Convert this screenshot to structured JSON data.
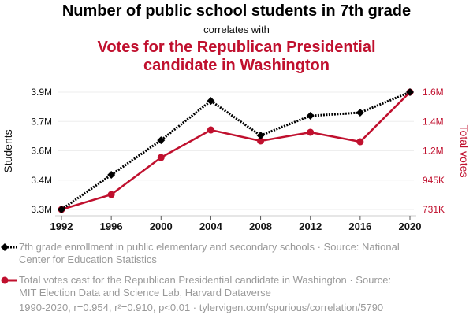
{
  "header": {
    "title": "Number of public school students in 7th grade",
    "subtitle": "correlates with",
    "title2": "Votes for the Republican Presidential candidate in Washington"
  },
  "legend": {
    "series1": "7th grade enrollment in public elementary and secondary schools · Source: National Center for Education Statistics",
    "series2": "Total votes cast for the Republican Presidential candidate in Washington · Source: MIT Election Data and Science Lab, Harvard Dataverse"
  },
  "footer": "1990-2020, r=0.954, r²=0.910, p<0.01 · tylervigen.com/spurious/correlation/5790",
  "colors": {
    "series1": "#000000",
    "series2": "#c0102e",
    "grid": "#eeeeee",
    "legend_text": "#999999"
  },
  "chart_data": {
    "type": "line",
    "title": "Number of public school students in 7th grade correlates with Votes for the Republican Presidential candidate in Washington",
    "x": [
      1992,
      1996,
      2000,
      2004,
      2008,
      2012,
      2016,
      2020
    ],
    "xticklabels": [
      "1992",
      "1996",
      "2000",
      "2004",
      "2008",
      "2012",
      "2016",
      "2020"
    ],
    "xlabel": "",
    "ylabel_left": "Students",
    "ylabel_right": "Total votes",
    "left_ylim": [
      3300000,
      3890000
    ],
    "right_ylim": [
      731000,
      1587000
    ],
    "left_yticklabels": [
      "3.3M",
      "3.4M",
      "3.6M",
      "3.7M",
      "3.9M"
    ],
    "right_yticklabels": [
      "731K",
      "945K",
      "1.2M",
      "1.4M",
      "1.6M"
    ],
    "grid": true,
    "legend_position": "bottom",
    "series": [
      {
        "name": "7th grade enrollment in public elementary and secondary schools",
        "axis": "left",
        "style": "dotted",
        "marker": "diamond",
        "values": [
          3300000,
          3474000,
          3648000,
          3846000,
          3672000,
          3771000,
          3787000,
          3890000
        ]
      },
      {
        "name": "Total votes cast for the Republican Presidential candidate in Washington",
        "axis": "right",
        "style": "solid",
        "marker": "circle",
        "values": [
          731000,
          840000,
          1110000,
          1311000,
          1231000,
          1294000,
          1225000,
          1587000
        ]
      }
    ]
  }
}
